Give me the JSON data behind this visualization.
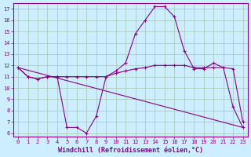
{
  "title": "",
  "xlabel": "Windchill (Refroidissement éolien,°C)",
  "background_color": "#cceeff",
  "grid_color": "#aaccbb",
  "line_color": "#880088",
  "xlim": [
    -0.5,
    23.5
  ],
  "ylim": [
    5.7,
    17.5
  ],
  "yticks": [
    6,
    7,
    8,
    9,
    10,
    11,
    12,
    13,
    14,
    15,
    16,
    17
  ],
  "xticks": [
    0,
    1,
    2,
    3,
    4,
    5,
    6,
    7,
    8,
    9,
    10,
    11,
    12,
    13,
    14,
    15,
    16,
    17,
    18,
    19,
    20,
    21,
    22,
    23
  ],
  "series1_x": [
    0,
    1,
    2,
    3,
    4,
    5,
    6,
    7,
    8,
    9,
    10,
    11,
    12,
    13,
    14,
    15,
    16,
    17,
    18,
    19,
    20,
    21,
    22,
    23
  ],
  "series1_y": [
    11.8,
    11.0,
    10.8,
    11.0,
    11.0,
    6.5,
    6.5,
    6.0,
    7.5,
    11.0,
    11.5,
    12.2,
    14.8,
    16.0,
    17.2,
    17.2,
    16.3,
    13.3,
    11.7,
    11.7,
    12.2,
    11.8,
    8.3,
    6.5
  ],
  "series2_x": [
    0,
    1,
    2,
    3,
    4,
    5,
    6,
    7,
    8,
    9,
    10,
    11,
    12,
    13,
    14,
    15,
    16,
    17,
    18,
    19,
    20,
    21,
    22,
    23
  ],
  "series2_y": [
    11.8,
    11.0,
    10.8,
    11.0,
    11.0,
    11.0,
    11.0,
    11.0,
    11.0,
    11.0,
    11.3,
    11.5,
    11.7,
    11.8,
    12.0,
    12.0,
    12.0,
    12.0,
    11.8,
    11.8,
    11.8,
    11.8,
    11.7,
    7.0
  ],
  "series3_x": [
    0,
    23
  ],
  "series3_y": [
    11.8,
    6.5
  ],
  "tick_fontsize": 5.0,
  "xlabel_fontsize": 6.0
}
